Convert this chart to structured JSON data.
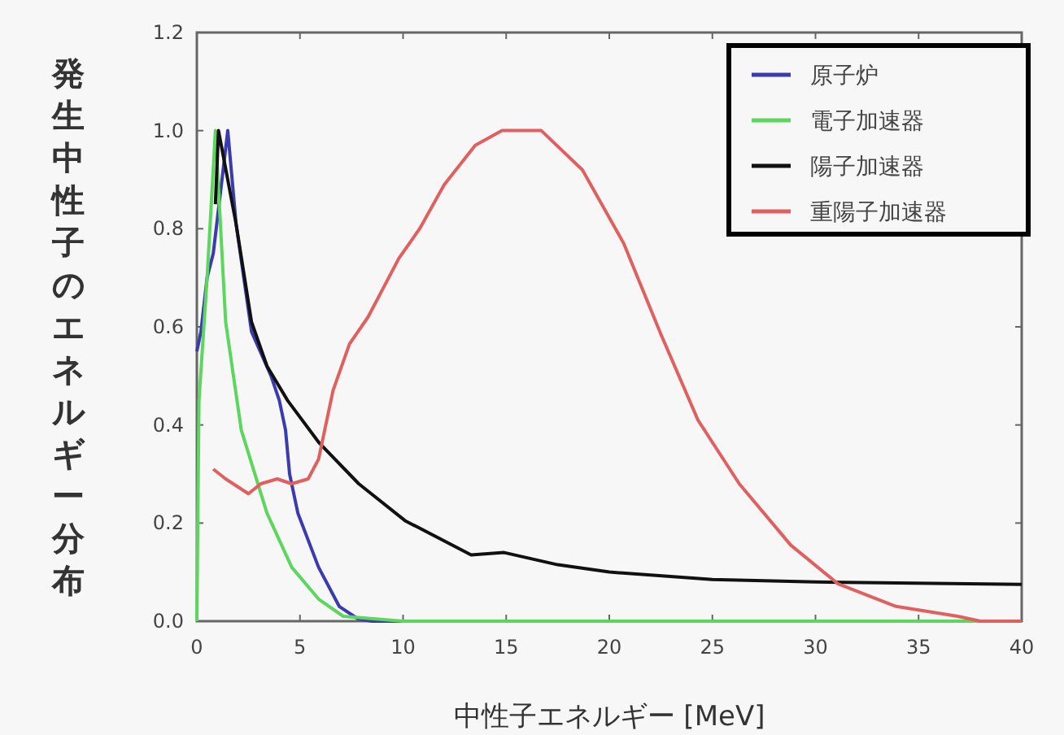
{
  "chart_data": {
    "type": "line",
    "xlabel": "中性子エネルギー [MeV]",
    "ylabel": "発生中性子のエネルギー分布",
    "xlim": [
      0,
      40
    ],
    "ylim": [
      0,
      1.2
    ],
    "xticks": [
      0,
      5,
      10,
      15,
      20,
      25,
      30,
      35,
      40
    ],
    "yticks": [
      {
        "value": 0,
        "label": "0.0"
      },
      {
        "value": 0.2,
        "label": "0.2"
      },
      {
        "value": 0.4,
        "label": "0.4"
      },
      {
        "value": 0.6,
        "label": "0.6"
      },
      {
        "value": 0.8,
        "label": "0.8"
      },
      {
        "value": 1.0,
        "label": "1.0"
      },
      {
        "value": 1.2,
        "label": "1.2"
      }
    ],
    "grid": false,
    "legend": "top right",
    "marker": "none",
    "line_style": "solid",
    "series": [
      {
        "name": "原子炉",
        "color": "#3b3bb0",
        "x": [
          0,
          0.2,
          0.5,
          0.8,
          1.5,
          1.9,
          2.65,
          3.6,
          4.0,
          4.3,
          4.5,
          4.9,
          5.9,
          6.9,
          7.8,
          8.5,
          10
        ],
        "values": [
          0.55,
          0.59,
          0.7,
          0.75,
          1.0,
          0.81,
          0.59,
          0.5,
          0.45,
          0.39,
          0.3,
          0.22,
          0.11,
          0.03,
          0.005,
          0,
          0
        ]
      },
      {
        "name": "電子加速器",
        "color": "#5cd65c",
        "x": [
          0,
          0.1,
          0.5,
          0.9,
          1.4,
          2.15,
          3.4,
          4.6,
          5.9,
          7.1,
          10,
          20,
          40
        ],
        "values": [
          0,
          0.45,
          0.7,
          1.0,
          0.61,
          0.39,
          0.22,
          0.11,
          0.045,
          0.01,
          0,
          0,
          0
        ]
      },
      {
        "name": "陽子加速器",
        "color": "#111111",
        "x": [
          0.9,
          1.05,
          1.9,
          2.65,
          3.4,
          4.4,
          5.9,
          7.85,
          10.1,
          13.3,
          14.9,
          17.5,
          20,
          25,
          30,
          40
        ],
        "values": [
          0.85,
          1.0,
          0.81,
          0.61,
          0.52,
          0.45,
          0.365,
          0.28,
          0.205,
          0.135,
          0.14,
          0.115,
          0.1,
          0.085,
          0.08,
          0.075
        ]
      },
      {
        "name": "重陽子加速器",
        "color": "#e06060",
        "x": [
          0.8,
          1.4,
          2.5,
          3.1,
          3.9,
          4.6,
          5.4,
          5.9,
          6.6,
          7.4,
          8.3,
          9.8,
          10.8,
          12,
          13.5,
          14.8,
          16.7,
          18.7,
          20.7,
          22.5,
          24.3,
          26.3,
          28.8,
          31.1,
          33.9,
          36.9,
          38,
          40
        ],
        "values": [
          0.31,
          0.29,
          0.26,
          0.28,
          0.29,
          0.28,
          0.29,
          0.33,
          0.47,
          0.565,
          0.62,
          0.74,
          0.8,
          0.89,
          0.97,
          1.0,
          1.0,
          0.92,
          0.77,
          0.585,
          0.41,
          0.28,
          0.155,
          0.076,
          0.03,
          0.01,
          0,
          0
        ]
      }
    ]
  }
}
